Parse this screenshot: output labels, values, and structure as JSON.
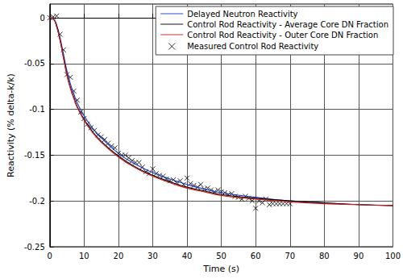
{
  "chart_data": {
    "type": "line",
    "x_label": "Time (s)",
    "y_label": "Reactivity (% delta-k/k)",
    "xlim": [
      0,
      100
    ],
    "xticks": [
      0,
      10,
      20,
      30,
      40,
      50,
      60,
      70,
      80,
      90,
      100
    ],
    "ylim": [
      -0.25,
      0.015
    ],
    "yticks": [
      -0.25,
      -0.2,
      -0.15,
      -0.1,
      -0.05,
      0
    ],
    "grid": true,
    "legend": "upper right",
    "series": [
      {
        "name": "Delayed Neutron Reactivity",
        "type": "line",
        "color": "#2040c8",
        "line_style": "solid",
        "x": [
          0,
          1,
          2,
          3,
          4,
          5,
          6,
          7,
          8,
          10,
          12,
          15,
          20,
          25,
          30,
          35,
          40,
          45,
          50,
          60,
          70,
          80,
          90,
          100
        ],
        "values": [
          0,
          -0.001,
          -0.008,
          -0.022,
          -0.04,
          -0.058,
          -0.072,
          -0.083,
          -0.093,
          -0.107,
          -0.118,
          -0.131,
          -0.148,
          -0.16,
          -0.169,
          -0.176,
          -0.182,
          -0.187,
          -0.191,
          -0.196,
          -0.2,
          -0.202,
          -0.204,
          -0.205
        ]
      },
      {
        "name": "Control Rod Reactivity - Average Core DN Fraction",
        "type": "line",
        "color": "#000000",
        "line_style": "solid",
        "x": [
          0,
          1,
          2,
          3,
          4,
          5,
          6,
          7,
          8,
          10,
          12,
          15,
          20,
          25,
          30,
          35,
          40,
          45,
          50,
          60,
          70,
          80,
          90,
          100
        ],
        "values": [
          0,
          -0.001,
          -0.009,
          -0.024,
          -0.043,
          -0.062,
          -0.076,
          -0.087,
          -0.097,
          -0.111,
          -0.122,
          -0.135,
          -0.151,
          -0.163,
          -0.172,
          -0.179,
          -0.185,
          -0.189,
          -0.193,
          -0.197,
          -0.2,
          -0.202,
          -0.204,
          -0.205
        ]
      },
      {
        "name": "Control Rod Reactivity - Outer Core DN Fraction",
        "type": "line",
        "color": "#cc2222",
        "line_style": "solid",
        "x": [
          0,
          1,
          2,
          3,
          4,
          5,
          6,
          7,
          8,
          10,
          12,
          15,
          20,
          25,
          30,
          35,
          40,
          45,
          50,
          60,
          70,
          80,
          90,
          100
        ],
        "values": [
          0,
          -0.001,
          -0.01,
          -0.025,
          -0.044,
          -0.063,
          -0.077,
          -0.088,
          -0.098,
          -0.112,
          -0.123,
          -0.136,
          -0.152,
          -0.164,
          -0.173,
          -0.18,
          -0.186,
          -0.19,
          -0.194,
          -0.198,
          -0.201,
          -0.203,
          -0.204,
          -0.205
        ]
      },
      {
        "name": "Measured Control Rod Reactivity",
        "type": "scatter",
        "color": "#000000",
        "marker": "x",
        "x": [
          0,
          1,
          2,
          3,
          4,
          5,
          6,
          7,
          8,
          9,
          10,
          11,
          12,
          13,
          14,
          15,
          16,
          17,
          18,
          19,
          20,
          21,
          22,
          23,
          24,
          25,
          26,
          27,
          28,
          29,
          30,
          31,
          32,
          33,
          34,
          35,
          36,
          37,
          38,
          39,
          40,
          41,
          42,
          43,
          44,
          45,
          46,
          47,
          48,
          49,
          50,
          51,
          52,
          53,
          54,
          55,
          56,
          57,
          58,
          59,
          60,
          61,
          62,
          63,
          64,
          65,
          66,
          67,
          68,
          69,
          70
        ],
        "values": [
          0,
          0.001,
          0.002,
          -0.018,
          -0.035,
          -0.062,
          -0.065,
          -0.08,
          -0.09,
          -0.103,
          -0.11,
          -0.116,
          -0.12,
          -0.123,
          -0.128,
          -0.13,
          -0.133,
          -0.137,
          -0.14,
          -0.142,
          -0.148,
          -0.15,
          -0.15,
          -0.153,
          -0.156,
          -0.158,
          -0.158,
          -0.163,
          -0.168,
          -0.17,
          -0.165,
          -0.17,
          -0.172,
          -0.173,
          -0.176,
          -0.178,
          -0.177,
          -0.18,
          -0.178,
          -0.182,
          -0.175,
          -0.181,
          -0.183,
          -0.185,
          -0.182,
          -0.187,
          -0.186,
          -0.188,
          -0.19,
          -0.188,
          -0.19,
          -0.191,
          -0.193,
          -0.192,
          -0.195,
          -0.196,
          -0.198,
          -0.195,
          -0.197,
          -0.2,
          -0.208,
          -0.2,
          -0.202,
          -0.198,
          -0.204,
          -0.203,
          -0.203,
          -0.203,
          -0.203,
          -0.203,
          -0.203
        ]
      }
    ]
  }
}
